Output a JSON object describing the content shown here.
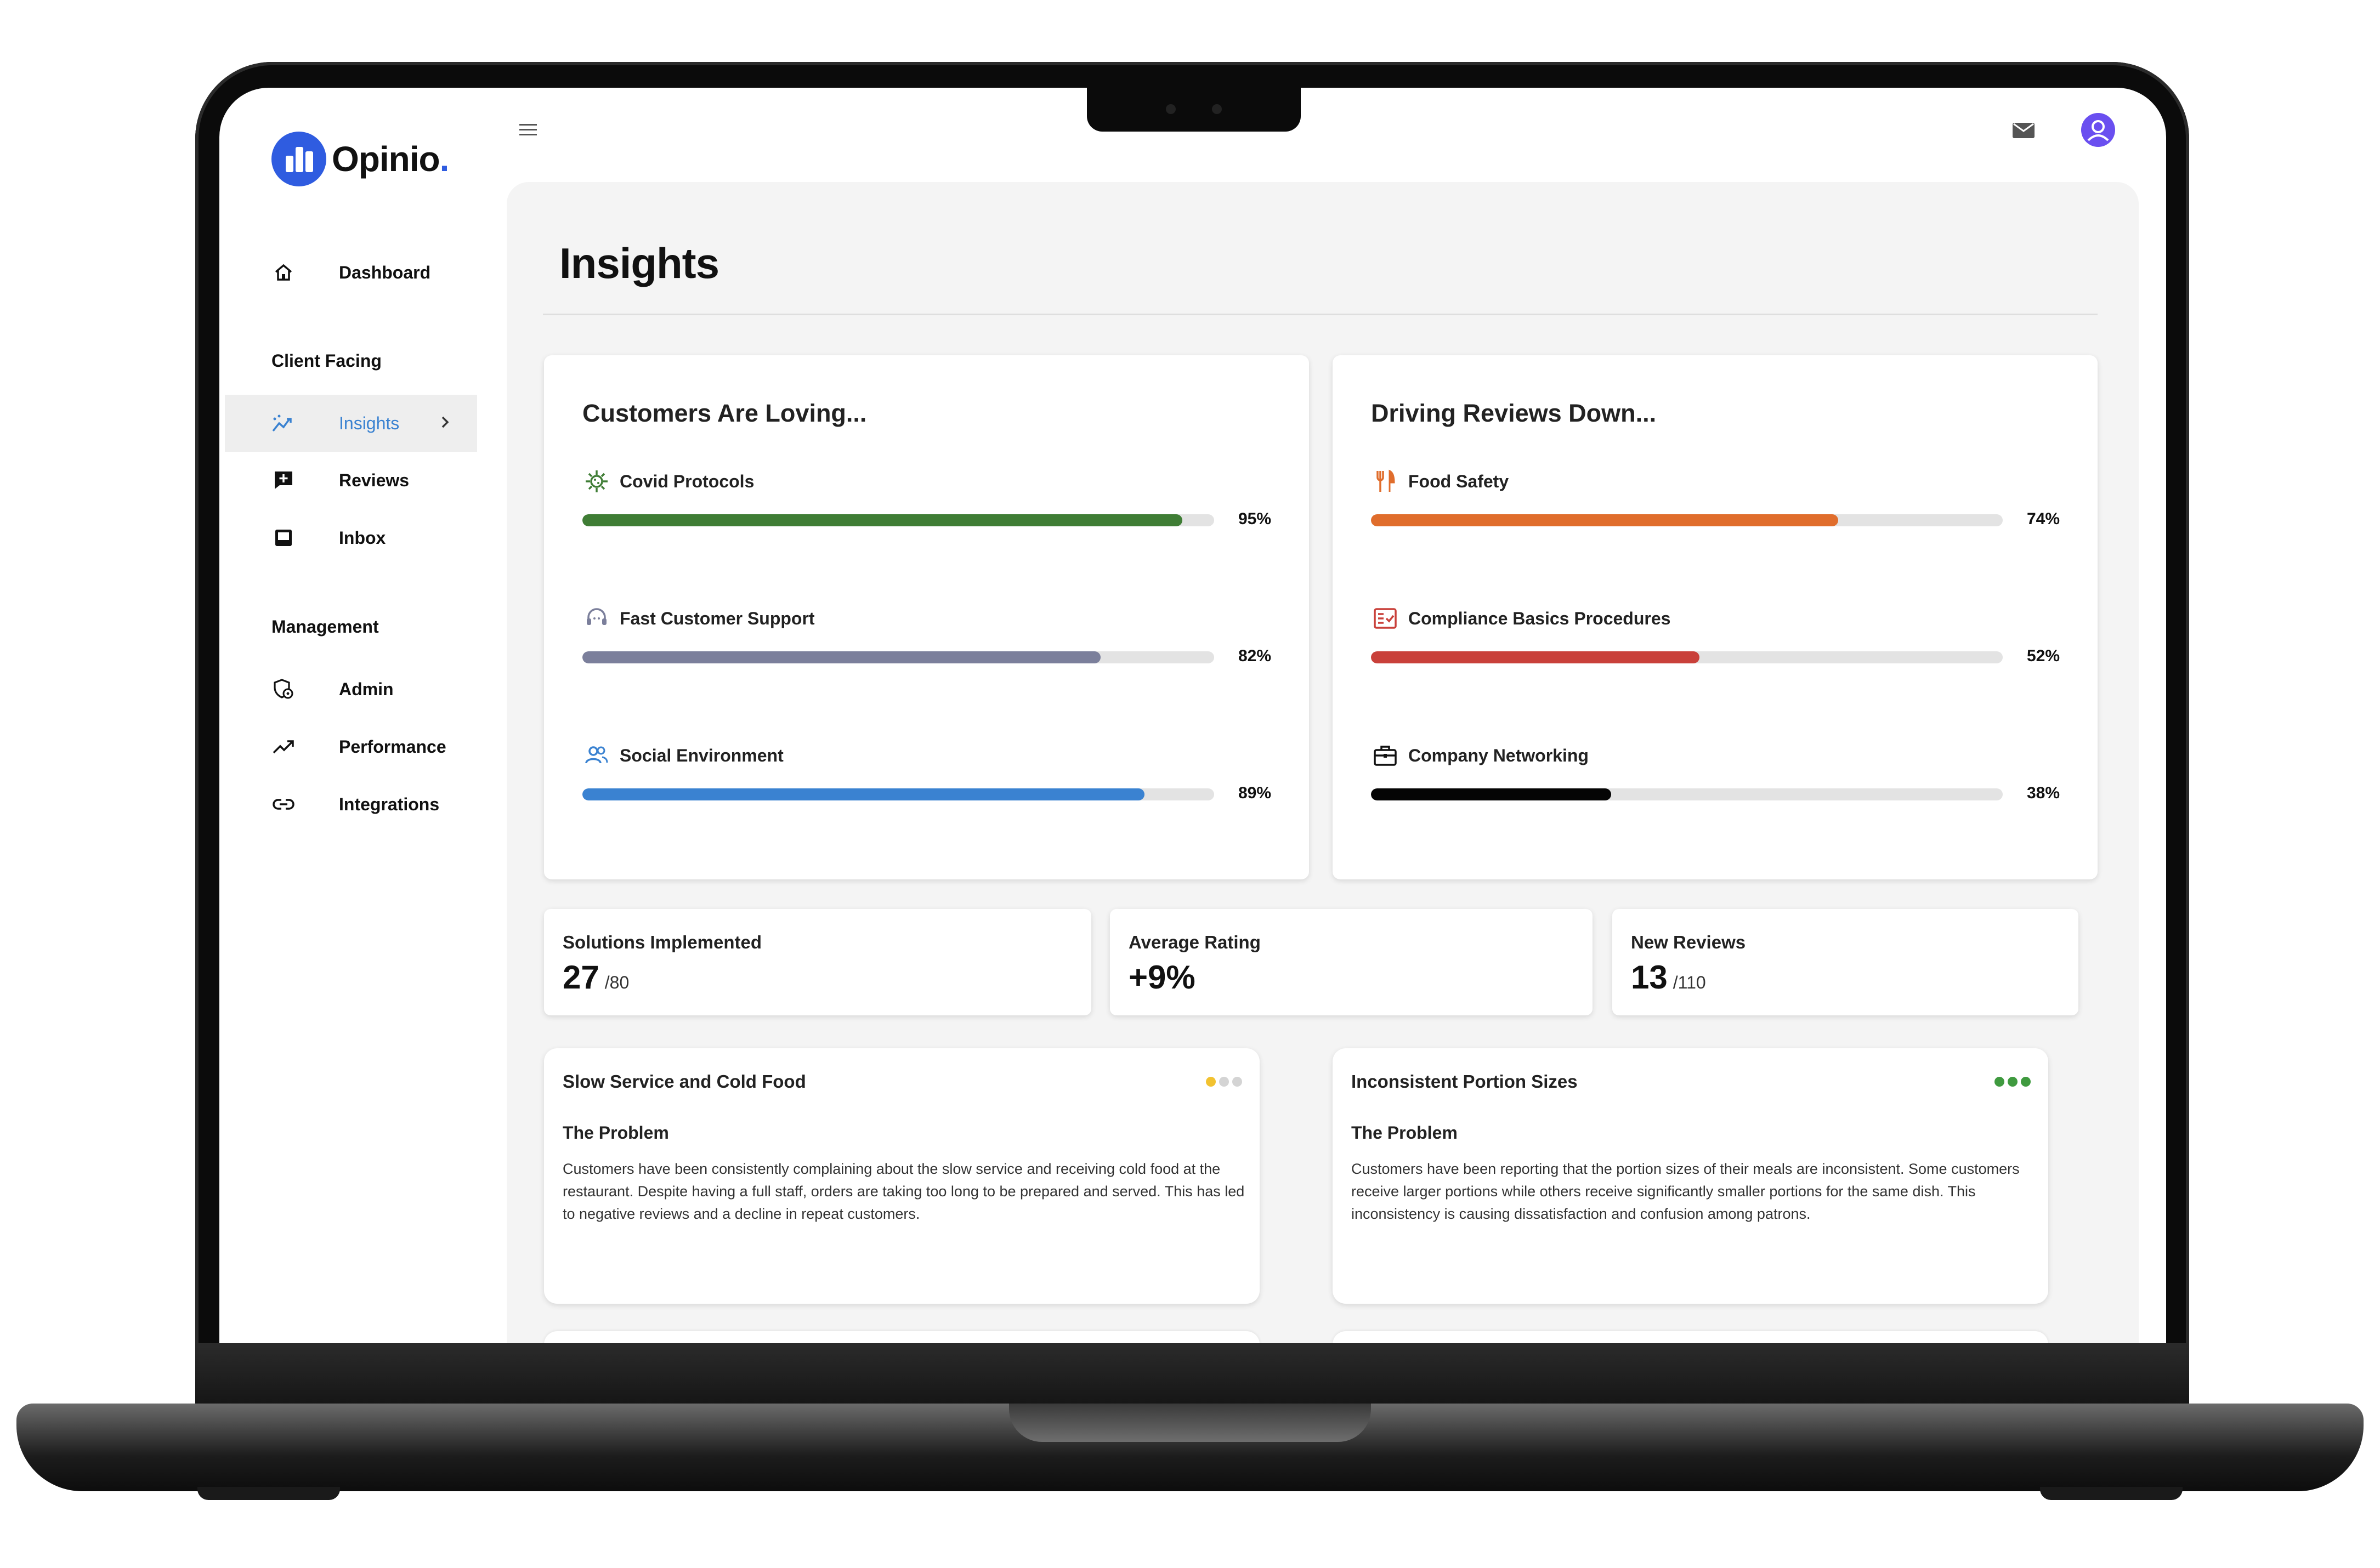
{
  "app": {
    "logo_text": "Opinio",
    "logo_dot": "."
  },
  "sidebar": {
    "dashboard": "Dashboard",
    "section_client": "Client Facing",
    "items_client": [
      {
        "label": "Insights",
        "icon": "insights-icon",
        "active": true
      },
      {
        "label": "Reviews",
        "icon": "reviews-icon"
      },
      {
        "label": "Inbox",
        "icon": "inbox-icon"
      }
    ],
    "section_management": "Management",
    "items_management": [
      {
        "label": "Admin",
        "icon": "admin-icon"
      },
      {
        "label": "Performance",
        "icon": "trending-up-icon"
      },
      {
        "label": "Integrations",
        "icon": "link-icon"
      }
    ]
  },
  "header": {
    "page_title": "Insights"
  },
  "loving": {
    "title": "Customers Are Loving...",
    "factors": [
      {
        "label": "Covid Protocols",
        "pct": "95%",
        "value": 95,
        "color": "#3f7d35",
        "icon": "virus-icon"
      },
      {
        "label": "Fast Customer Support",
        "pct": "82%",
        "value": 82,
        "color": "#7b7f9b",
        "icon": "support-icon"
      },
      {
        "label": "Social Environment",
        "pct": "89%",
        "value": 89,
        "color": "#3a82d1",
        "icon": "people-icon"
      }
    ]
  },
  "driving_down": {
    "title": "Driving Reviews Down...",
    "factors": [
      {
        "label": "Food Safety",
        "pct": "74%",
        "value": 74,
        "color": "#e06d2c",
        "icon": "utensils-icon"
      },
      {
        "label": "Compliance Basics Procedures",
        "pct": "52%",
        "value": 52,
        "color": "#c9403a",
        "icon": "checklist-icon"
      },
      {
        "label": "Company Networking",
        "pct": "38%",
        "value": 38,
        "color": "#050505",
        "icon": "briefcase-icon"
      }
    ]
  },
  "stats": [
    {
      "label": "Solutions Implemented",
      "value": "27",
      "total": "/80"
    },
    {
      "label": "Average Rating",
      "value": "+9%",
      "total": ""
    },
    {
      "label": "New Reviews",
      "value": "13",
      "total": "/110"
    }
  ],
  "issues": [
    {
      "title": "Slow Service and Cold Food",
      "subtitle": "The Problem",
      "body": "Customers have been consistently complaining about the slow service and receiving cold food at the restaurant. Despite having a full staff, orders are taking too long to be prepared and served. This has led to negative reviews and a decline in repeat customers.",
      "dots": [
        "#f2c230",
        "#d4d4d4",
        "#d4d4d4"
      ]
    },
    {
      "title": "Inconsistent Portion Sizes",
      "subtitle": "The Problem",
      "body": "Customers have been reporting that the portion sizes of their meals are inconsistent. Some customers receive larger portions while others receive significantly smaller portions for the same dish. This inconsistency is causing dissatisfaction and confusion among patrons.",
      "dots": [
        "#3f9a3f",
        "#3f9a3f",
        "#3f9a3f"
      ]
    }
  ],
  "colors": {
    "brand": "#2f5ce0",
    "active_nav": "#3a82d1",
    "avatar": "#6a4ff0"
  }
}
